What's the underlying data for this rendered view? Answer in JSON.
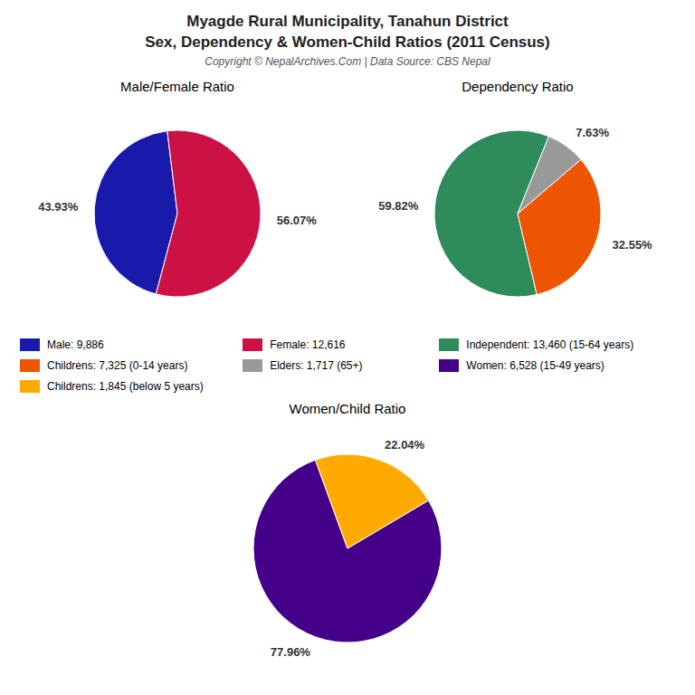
{
  "title": [
    "Myagde Rural Municipality, Tanahun District",
    "Sex, Dependency & Women-Child Ratios (2011 Census)"
  ],
  "subtitle": "Copyright © NepalArchives.Com | Data Source: CBS Nepal",
  "chart_data": [
    {
      "type": "pie",
      "title": "Male/Female Ratio",
      "categories": [
        "Male: 9,886",
        "Female: 12,616"
      ],
      "values": [
        43.93,
        56.07
      ],
      "value_labels": [
        "43.93%",
        "56.07%"
      ],
      "colors": [
        "#1a1aaa",
        "#cc1144"
      ],
      "data_labels": true
    },
    {
      "type": "pie",
      "title": "Dependency Ratio",
      "categories": [
        "Independent: 13,460 (15-64 years)",
        "Childrens: 7,325 (0-14 years)",
        "Elders: 1,717 (65+)"
      ],
      "values": [
        59.82,
        32.55,
        7.63
      ],
      "value_labels": [
        "59.82%",
        "32.55%",
        "7.63%"
      ],
      "colors": [
        "#2e8b5a",
        "#ee5500",
        "#999999"
      ],
      "data_labels": true
    },
    {
      "type": "pie",
      "title": "Women/Child Ratio",
      "categories": [
        "Women: 6,528 (15-49 years)",
        "Childrens: 1,845 (below 5 years)"
      ],
      "values": [
        77.96,
        22.04
      ],
      "value_labels": [
        "77.96%",
        "22.04%"
      ],
      "colors": [
        "#440088",
        "#ffaa00"
      ],
      "data_labels": true
    }
  ]
}
